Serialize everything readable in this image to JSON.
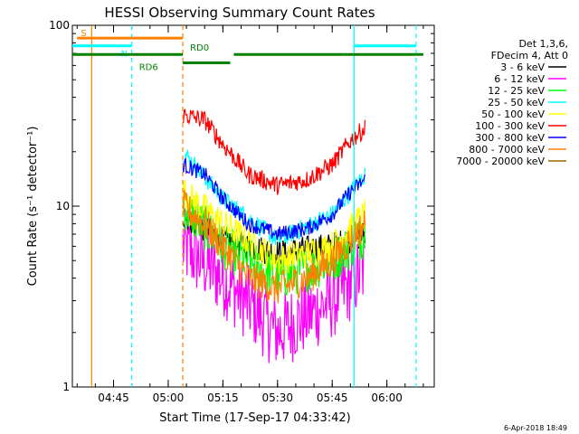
{
  "chart_data": {
    "type": "line",
    "title": "HESSI Observing Summary Count Rates",
    "xlabel": "Start Time (17-Sep-17 04:33:42)",
    "ylabel": "Count Rate (s⁻¹ detector⁻¹)",
    "yscale": "log",
    "ylim": [
      1,
      100
    ],
    "xlim": [
      "04:33:42",
      "06:13:00"
    ],
    "xticks": [
      "04:45",
      "05:00",
      "05:15",
      "05:30",
      "05:45",
      "06:00"
    ],
    "yticks": [
      "1",
      "10",
      "100"
    ],
    "grid": false,
    "legend_position": "top-right",
    "legend_header": [
      "Det 1,3,6,",
      "FDecim 4, Att 0"
    ],
    "series": [
      {
        "name": "3 - 6 keV",
        "color": "#000000",
        "x": [
          "05:04",
          "05:15",
          "05:30",
          "05:45",
          "05:54"
        ],
        "y": [
          9,
          6.5,
          5.5,
          6,
          7
        ]
      },
      {
        "name": "6 - 12 keV",
        "color": "#ff00ff",
        "x": [
          "05:04",
          "05:15",
          "05:30",
          "05:45",
          "05:54"
        ],
        "y": [
          6,
          4,
          2,
          3,
          4.5
        ]
      },
      {
        "name": "12 - 25 keV",
        "color": "#00ff00",
        "x": [
          "05:04",
          "05:15",
          "05:30",
          "05:45",
          "05:54"
        ],
        "y": [
          10,
          6,
          4,
          5,
          7
        ]
      },
      {
        "name": "25 - 50 keV",
        "color": "#00ffff",
        "x": [
          "05:04",
          "05:15",
          "05:30",
          "05:45",
          "05:54"
        ],
        "y": [
          20,
          11,
          6.5,
          9,
          15
        ]
      },
      {
        "name": "50 - 100 keV",
        "color": "#ffff00",
        "x": [
          "05:04",
          "05:15",
          "05:30",
          "05:45",
          "05:54"
        ],
        "y": [
          12,
          8,
          5,
          6,
          9
        ]
      },
      {
        "name": "100 - 300 keV",
        "color": "#ff0000",
        "x": [
          "05:04",
          "05:10",
          "05:15",
          "05:22",
          "05:30",
          "05:38",
          "05:45",
          "05:50",
          "05:54"
        ],
        "y": [
          32,
          30,
          22,
          15,
          13,
          14,
          17,
          23,
          27
        ]
      },
      {
        "name": "300 - 800 keV",
        "color": "#0000ff",
        "x": [
          "05:04",
          "05:10",
          "05:15",
          "05:22",
          "05:30",
          "05:38",
          "05:45",
          "05:50",
          "05:54"
        ],
        "y": [
          17,
          15,
          11,
          8,
          7,
          7.5,
          9,
          12,
          14
        ]
      },
      {
        "name": "800 - 7000 keV",
        "color": "#ff8000",
        "x": [
          "05:04",
          "05:10",
          "05:15",
          "05:22",
          "05:30",
          "05:38",
          "05:45",
          "05:50",
          "05:54"
        ],
        "y": [
          10,
          8,
          6,
          4,
          3.5,
          4,
          5,
          6.5,
          8
        ]
      },
      {
        "name": "7000 - 20000 keV",
        "color": "#996600",
        "x": [],
        "y": []
      }
    ],
    "annotations": [
      {
        "label": "S",
        "color": "#ff8000",
        "x_start": "04:35",
        "x_end": "05:04",
        "level": 85
      },
      {
        "label": "N",
        "color": "#00ffff",
        "x_start": "04:33:42",
        "x_end": "04:50",
        "level": 77,
        "segments": [
          [
            "04:33:42",
            "04:50"
          ],
          [
            "05:51",
            "06:08"
          ]
        ]
      },
      {
        "label": "RD0",
        "color": "#008000",
        "x_start": "05:04",
        "x_end": "06:10",
        "level": 69,
        "segments": [
          [
            "04:33:42",
            "05:04"
          ],
          [
            "05:18",
            "05:48"
          ],
          [
            "05:48",
            "06:08"
          ],
          [
            "06:08",
            "06:10"
          ]
        ]
      },
      {
        "label": "RD6",
        "color": "#008000",
        "x_start": "05:04",
        "x_end": "05:17",
        "level": 62
      }
    ],
    "vertical_lines": [
      {
        "x": "04:39",
        "color": "#ff8000",
        "style": "solid"
      },
      {
        "x": "04:50",
        "color": "#00ffff",
        "style": "dashed"
      },
      {
        "x": "05:04",
        "color": "#ff8000",
        "style": "dashed"
      },
      {
        "x": "05:51",
        "color": "#00ffff",
        "style": "solid"
      },
      {
        "x": "06:08",
        "color": "#00ffff",
        "style": "dashed"
      }
    ]
  },
  "footer": {
    "timestamp": "6-Apr-2018 18:49"
  }
}
